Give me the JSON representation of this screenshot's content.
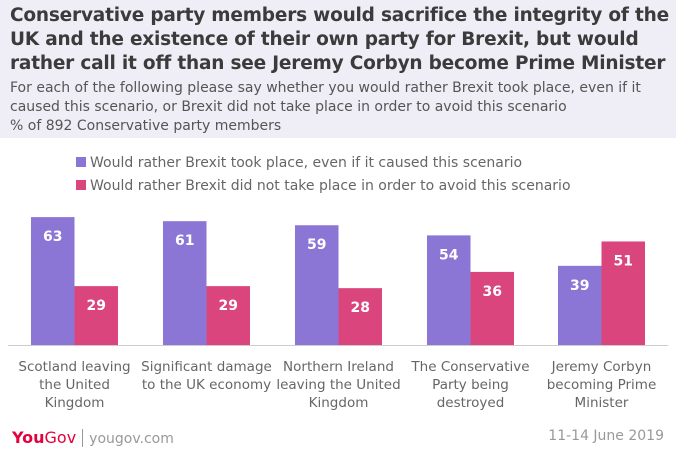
{
  "header": {
    "title": "Conservative party members would sacrifice the integrity of the UK and the existence of their own party for Brexit, but would rather call it off than see Jeremy Corbyn become Prime Minister",
    "subtitle": "For each of the following please say whether you would rather Brexit took place, even if it caused this scenario, or Brexit did not take place in order to avoid this scenario",
    "base": "% of 892 Conservative party members"
  },
  "chart_data": {
    "type": "bar",
    "categories": [
      "Scotland leaving the United Kingdom",
      "Significant damage to the UK economy",
      "Northern Ireland leaving the United Kingdom",
      "The Conservative Party being destroyed",
      "Jeremy Corbyn becoming Prime Minister"
    ],
    "series": [
      {
        "name": "Would rather Brexit took place, even if it caused this scenario",
        "values": [
          63,
          61,
          59,
          54,
          39
        ],
        "color": "#8c76d5"
      },
      {
        "name": "Would rather Brexit did not take place in order to avoid this scenario",
        "values": [
          29,
          29,
          28,
          36,
          51
        ],
        "color": "#d9457c"
      }
    ],
    "ylim": [
      0,
      70
    ],
    "grid": false,
    "legend": "top"
  },
  "footer": {
    "brand_you": "You",
    "brand_gov": "Gov",
    "site": "yougov.com",
    "date": "11-14 June 2019"
  }
}
